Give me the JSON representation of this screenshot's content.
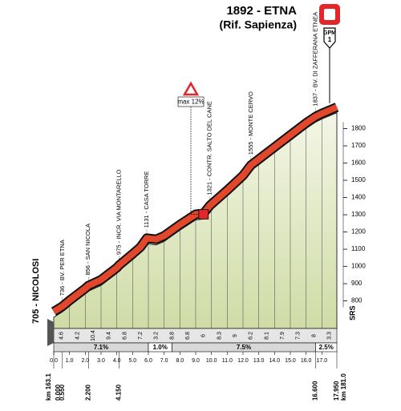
{
  "chart_data": {
    "type": "area",
    "title": "1892 - ETNA",
    "subtitle": "(Rif. Sapienza)",
    "gpm_label": "GPM",
    "gpm_category": "1",
    "max_label": "max 12%",
    "max_km": 9.5,
    "logo": "SRS",
    "x": [
      0,
      0.55,
      1,
      2,
      2.2,
      3,
      4,
      4.15,
      5,
      5.5,
      5.9,
      6.5,
      7,
      8,
      9,
      9.5,
      9.9,
      11,
      12,
      12.5,
      13,
      14,
      15,
      16,
      16.6,
      17,
      17.95
    ],
    "values": [
      705,
      736,
      770,
      840,
      856,
      890,
      960,
      975,
      1040,
      1080,
      1131,
      1125,
      1145,
      1210,
      1270,
      1275,
      1321,
      1410,
      1495,
      1555,
      1590,
      1660,
      1730,
      1800,
      1837,
      1855,
      1892
    ],
    "fill_color": "#e3ebc4",
    "band_color": "#e2472b",
    "xlim": [
      0,
      17.95
    ],
    "ylim": [
      640,
      1900
    ],
    "yticks": [
      800,
      900,
      1000,
      1100,
      1200,
      1300,
      1400,
      1500,
      1600,
      1700,
      1800
    ],
    "xticks": [
      {
        "value": 0,
        "label": "0.0"
      },
      {
        "value": 1,
        "label": "1.0"
      },
      {
        "value": 2,
        "label": "2.0"
      },
      {
        "value": 3,
        "label": "3.0"
      },
      {
        "value": 4,
        "label": "4.0"
      },
      {
        "value": 5,
        "label": "5.0"
      },
      {
        "value": 6,
        "label": "6.0"
      },
      {
        "value": 7,
        "label": "7.0"
      },
      {
        "value": 8,
        "label": "8.0"
      },
      {
        "value": 9,
        "label": "9.0"
      },
      {
        "value": 10,
        "label": "10.0"
      },
      {
        "value": 11,
        "label": "11.0"
      },
      {
        "value": 12,
        "label": "12.0"
      },
      {
        "value": 13,
        "label": "13.0"
      },
      {
        "value": 14,
        "label": "14.0"
      },
      {
        "value": 15,
        "label": "15.0"
      },
      {
        "value": 16,
        "label": "16.0"
      },
      {
        "value": 17,
        "label": "17.0"
      }
    ],
    "grid": true,
    "gradients": [
      4.6,
      4.2,
      10.4,
      9.4,
      6.8,
      7.2,
      3.2,
      8.8,
      6.8,
      6.0,
      8.3,
      9.0,
      6.2,
      8.1,
      7.9,
      7.3,
      8.0,
      3.3
    ],
    "avg_gradients": [
      {
        "from": 0,
        "to": 6,
        "value": 7.1,
        "label": "7.1%"
      },
      {
        "from": 6,
        "to": 7.5,
        "value": 1.0,
        "label": "1.0%"
      },
      {
        "from": 7.5,
        "to": 16.6,
        "value": 7.5,
        "label": "7.5%"
      },
      {
        "from": 16.6,
        "to": 17.95,
        "value": 2.5,
        "label": "2.5%"
      }
    ],
    "places": [
      {
        "km": 0,
        "altitude": 705,
        "label": "705 - NICOLOSI"
      },
      {
        "km": 0.55,
        "altitude": 736,
        "label": "736 - BV. PER ETNA"
      },
      {
        "km": 2.2,
        "altitude": 856,
        "label": "856 - SAN NICOLA"
      },
      {
        "km": 4.15,
        "altitude": 975,
        "label": "975 - INCR. VIA MONTARELLO"
      },
      {
        "km": 5.9,
        "altitude": 1131,
        "label": "1131 - CASA TORRE"
      },
      {
        "km": 9.9,
        "altitude": 1321,
        "label": "1321 - CONTR. SALTO DEL CANE"
      },
      {
        "km": 12.5,
        "altitude": 1555,
        "label": "1555 - MONTE CERVO"
      },
      {
        "km": 16.6,
        "altitude": 1837,
        "label": "1837 - BV. DI ZAFFERANA ETNEA"
      }
    ],
    "km_marks": [
      {
        "value": 0,
        "label": "0.000"
      },
      {
        "value": 0.55,
        "label": "0.550"
      },
      {
        "value": 2.2,
        "label": "2.200"
      },
      {
        "value": 4.15,
        "label": "4.150"
      },
      {
        "value": 16.6,
        "label": "16.600"
      },
      {
        "value": 17.95,
        "label": "17.950"
      }
    ],
    "km_start": "km 163.1",
    "km_end": "km 181.0"
  }
}
